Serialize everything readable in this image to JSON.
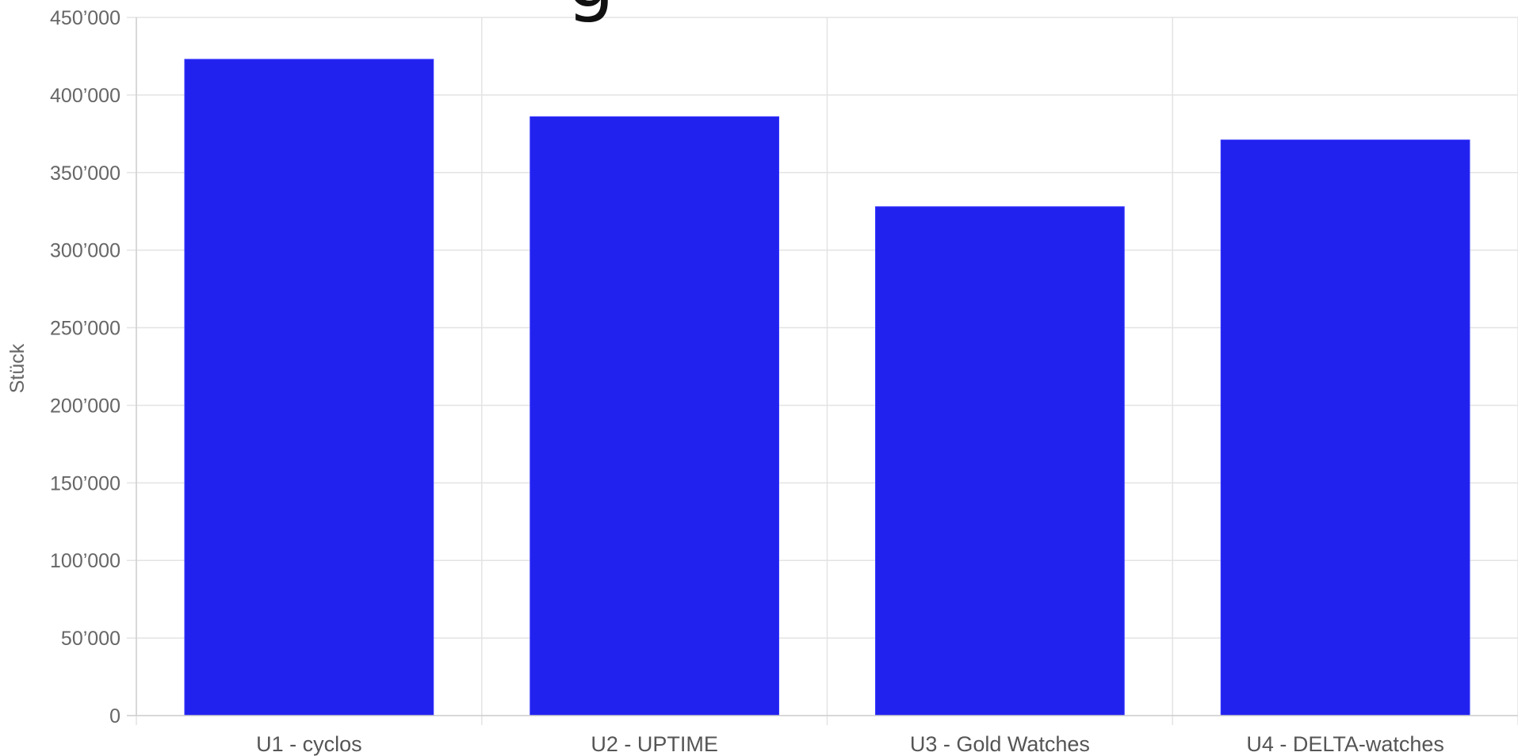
{
  "chart_data": {
    "type": "bar",
    "title_fragment": "g",
    "xlabel": "",
    "ylabel": "Stück",
    "categories": [
      "U1 - cyclos",
      "U2 - UPTIME",
      "U3 - Gold Watches",
      "U4 - DELTA-watches"
    ],
    "values": [
      423000,
      386000,
      328000,
      371000
    ],
    "ylim": [
      0,
      450000
    ],
    "yticks": [
      0,
      50000,
      100000,
      150000,
      200000,
      250000,
      300000,
      350000,
      400000,
      450000
    ],
    "ytick_labels": [
      "0",
      "50’000",
      "100’000",
      "150’000",
      "200’000",
      "250’000",
      "300’000",
      "350’000",
      "400’000",
      "450’000"
    ],
    "bar_color": "#2222ee",
    "grid": true,
    "legend": "none"
  }
}
